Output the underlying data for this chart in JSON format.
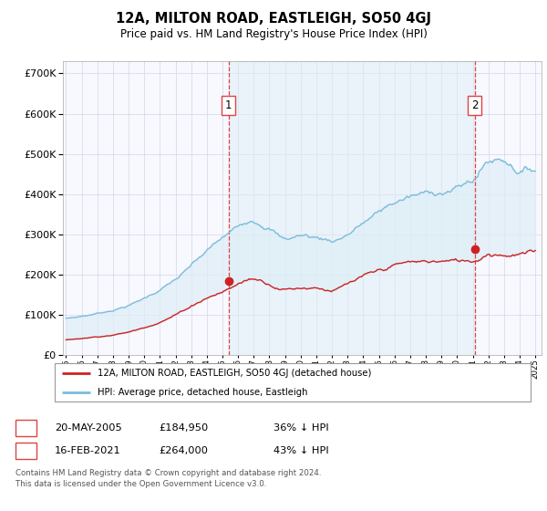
{
  "title": "12A, MILTON ROAD, EASTLEIGH, SO50 4GJ",
  "subtitle": "Price paid vs. HM Land Registry's House Price Index (HPI)",
  "legend_property": "12A, MILTON ROAD, EASTLEIGH, SO50 4GJ (detached house)",
  "legend_hpi": "HPI: Average price, detached house, Eastleigh",
  "sale1_date": "20-MAY-2005",
  "sale1_price": "£184,950",
  "sale1_note": "36% ↓ HPI",
  "sale2_date": "16-FEB-2021",
  "sale2_price": "£264,000",
  "sale2_note": "43% ↓ HPI",
  "footer": "Contains HM Land Registry data © Crown copyright and database right 2024.\nThis data is licensed under the Open Government Licence v3.0.",
  "hpi_color": "#7bbcdb",
  "hpi_fill_color": "#deeef7",
  "property_color": "#cc2222",
  "vline_color": "#dd4444",
  "sale1_year": 2005.38,
  "sale2_year": 2021.12,
  "sale1_price_val": 184950,
  "sale2_price_val": 264000,
  "ylim": [
    0,
    730000
  ],
  "yticks": [
    0,
    100000,
    200000,
    300000,
    400000,
    500000,
    600000,
    700000
  ],
  "bg_color": "#f8f8ff"
}
